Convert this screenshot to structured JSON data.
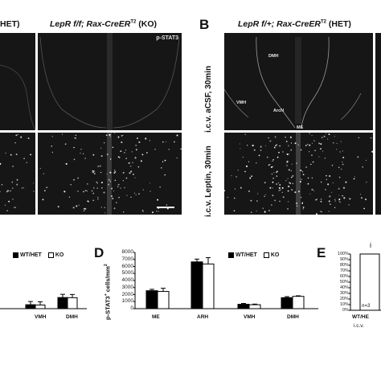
{
  "header_left": {
    "fragment": "HET)"
  },
  "header_ko": {
    "genotype": "LepR f/f; Rax-CreER",
    "superscript": "T2",
    "suffix": " (KO)"
  },
  "panel_b": {
    "letter": "B",
    "genotype": "LepR f/+; Rax-CreER",
    "superscript": "T2",
    "suffix": " (HET)"
  },
  "stain_label": "p-STAT3",
  "row_labels": {
    "acsf": "i.c.v. aCSF, 30min",
    "leptin": "i.c.v. Leptin, 30min"
  },
  "region_labels": {
    "dmh": "DMH",
    "vmh": "VMH",
    "arcn": "ArcN",
    "me": "ME"
  },
  "panel_d": {
    "letter": "D"
  },
  "panel_e": {
    "letter": "E"
  },
  "legend": {
    "wt_het": "WT/HET",
    "ko": "KO"
  },
  "colors": {
    "wt_het": "#000000",
    "ko": "#ffffff",
    "micro_bg": "#161616"
  },
  "chart_left": {
    "type": "bar",
    "categories": [
      "VMH",
      "DMH"
    ],
    "series": [
      {
        "name": "WT/HET",
        "values": [
          560,
          1580
        ]
      },
      {
        "name": "KO",
        "values": [
          520,
          1560
        ]
      }
    ],
    "ylim": [
      0,
      8000
    ]
  },
  "chart_data": {
    "type": "bar",
    "categories": [
      "ME",
      "ARH",
      "VMH",
      "DMH"
    ],
    "series": [
      {
        "name": "WT/HET",
        "values": [
          2550,
          6650,
          620,
          1560
        ],
        "errors": [
          200,
          400,
          120,
          150
        ]
      },
      {
        "name": "KO",
        "values": [
          2450,
          6350,
          560,
          1750
        ],
        "errors": [
          450,
          900,
          90,
          80
        ]
      }
    ],
    "ylabel": "p-STAT3+ cells/mm²",
    "ylim": [
      0,
      8000
    ],
    "yticks": [
      "0",
      "1000",
      "2000",
      "3000",
      "4000",
      "5000",
      "6000",
      "7000",
      "8000"
    ],
    "grid": false,
    "legend_position": "top-right"
  },
  "chart_e": {
    "yticks": [
      "0%",
      "10%",
      "20%",
      "30%",
      "40%",
      "50%",
      "60%",
      "70%",
      "80%",
      "90%",
      "100%"
    ],
    "value_percent": 100,
    "n_label": "n=3",
    "x_label": "WT/HE",
    "x_label_extra": "i.c.v.",
    "partial_title": "i"
  }
}
